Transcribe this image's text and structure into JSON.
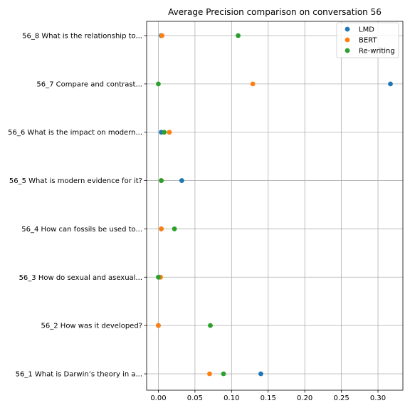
{
  "chart_data": {
    "type": "scatter",
    "title": "Average Precision comparison on conversation 56",
    "xlabel": "",
    "ylabel": "",
    "xlim": [
      -0.016,
      0.334
    ],
    "grid": true,
    "legend_position": "top-right",
    "x_ticks": [
      0.0,
      0.05,
      0.1,
      0.15,
      0.2,
      0.25,
      0.3
    ],
    "x_tick_labels": [
      "0.00",
      "0.05",
      "0.10",
      "0.15",
      "0.20",
      "0.25",
      "0.30"
    ],
    "categories": [
      "56_1 What is Darwin’s theory in a...",
      "56_2 How was it developed?",
      "56_3 How do sexual and asexual...",
      "56_4 How can fossils be used to...",
      "56_5 What is modern evidence for it?",
      "56_6 What is the impact on modern...",
      "56_7 Compare and contrast...",
      "56_8 What is the relationship to..."
    ],
    "series": [
      {
        "name": "LMD",
        "color": "#1f77b4",
        "values": [
          0.14,
          0.0,
          0.002,
          0.004,
          0.032,
          0.004,
          0.317,
          0.004
        ]
      },
      {
        "name": "BERT",
        "color": "#ff7f0e",
        "values": [
          0.07,
          0.0,
          0.003,
          0.004,
          0.004,
          0.015,
          0.129,
          0.005
        ]
      },
      {
        "name": "Re-writing",
        "color": "#2ca02c",
        "values": [
          0.089,
          0.071,
          0.0,
          0.022,
          0.004,
          0.008,
          0.0,
          0.109
        ]
      }
    ]
  }
}
